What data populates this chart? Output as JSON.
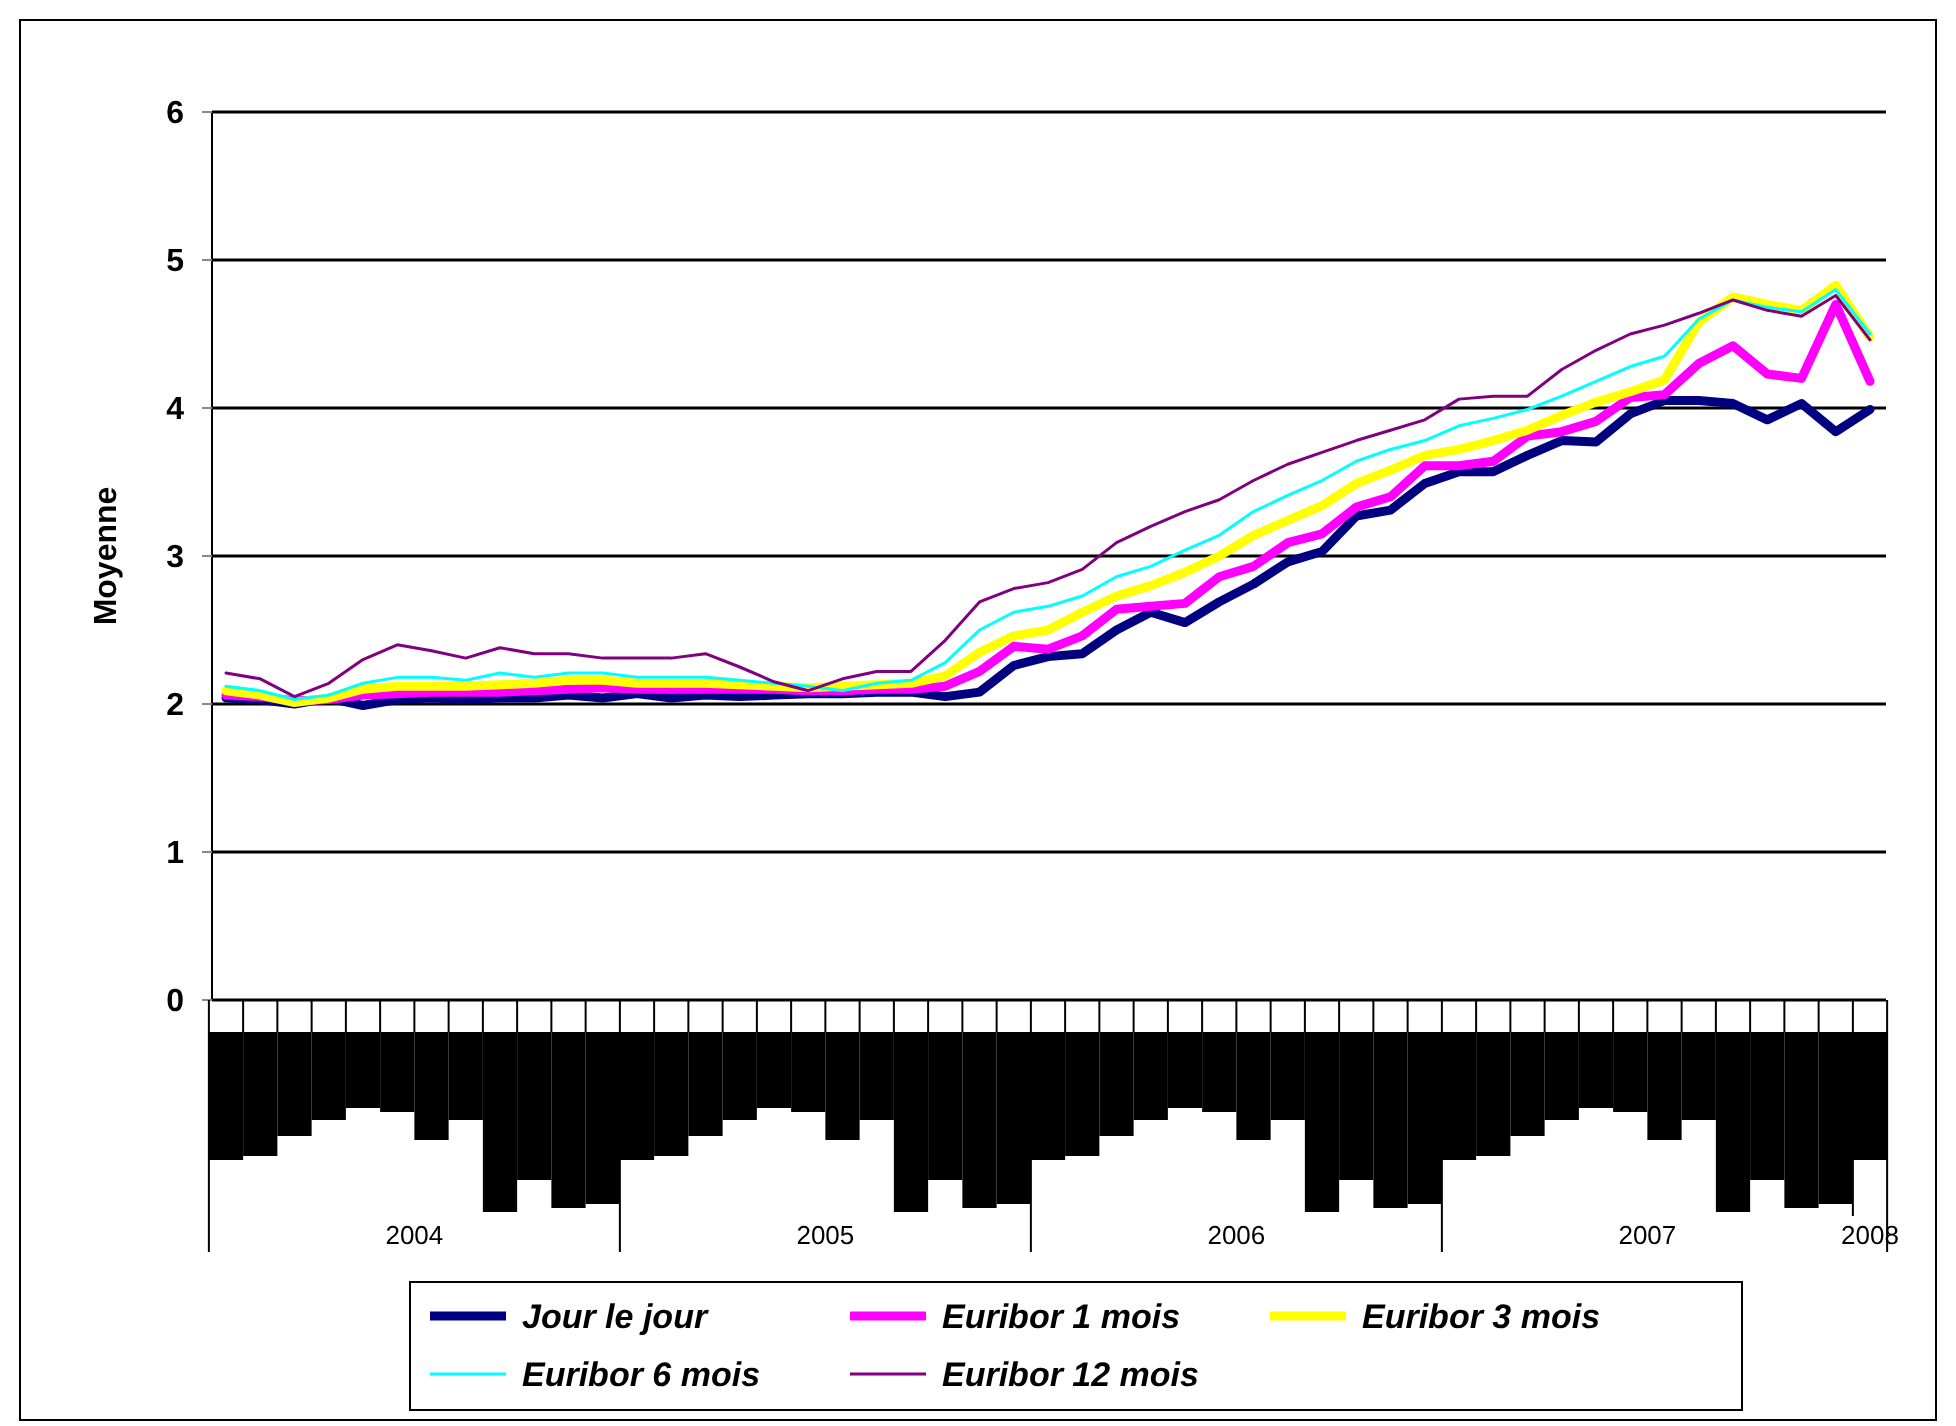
{
  "chart_data": {
    "type": "line",
    "ylabel": "Moyenne",
    "ylim": [
      0,
      6
    ],
    "yticks": [
      0,
      1,
      2,
      3,
      4,
      5,
      6
    ],
    "grid": "y",
    "legend": "bottom",
    "marker": "none",
    "categories": [
      null,
      null,
      null,
      null,
      null,
      null,
      null,
      null,
      null,
      null,
      null,
      null,
      null,
      null,
      null,
      null,
      null,
      null,
      null,
      null,
      null,
      null,
      null,
      null,
      null,
      null,
      null,
      null,
      null,
      null,
      null,
      null,
      null,
      null,
      null,
      null,
      null,
      null,
      null,
      null,
      null,
      null,
      null,
      null,
      null,
      null,
      null,
      null,
      null
    ],
    "annotations": [
      "2004",
      "2005",
      "2006",
      "2007",
      "2008"
    ],
    "series": [
      {
        "name": "Jour le jour",
        "color": "#000080",
        "values": [
          2.04,
          2.03,
          2.0,
          2.04,
          1.99,
          2.03,
          2.04,
          2.03,
          2.04,
          2.04,
          2.06,
          2.04,
          2.07,
          2.04,
          2.06,
          2.05,
          2.06,
          2.07,
          2.07,
          2.08,
          2.08,
          2.05,
          2.08,
          2.26,
          2.32,
          2.34,
          2.5,
          2.62,
          2.55,
          2.69,
          2.81,
          2.96,
          3.03,
          3.27,
          3.31,
          3.49,
          3.57,
          3.57,
          3.68,
          3.78,
          3.77,
          3.96,
          4.05,
          4.05,
          4.03,
          3.92,
          4.03,
          3.84,
          3.99
        ]
      },
      {
        "name": "Euribor 1 mois",
        "color": "#ff00ff",
        "values": [
          2.06,
          2.05,
          2.02,
          2.03,
          2.06,
          2.07,
          2.08,
          2.08,
          2.08,
          2.09,
          2.1,
          2.11,
          2.1,
          2.1,
          2.1,
          2.1,
          2.1,
          2.09,
          2.09,
          2.1,
          2.1,
          2.12,
          2.22,
          2.39,
          2.37,
          2.46,
          2.64,
          2.66,
          2.68,
          2.86,
          2.93,
          3.09,
          3.15,
          3.33,
          3.4,
          3.61,
          3.61,
          3.64,
          3.81,
          3.84,
          3.91,
          4.07,
          4.09,
          4.3,
          4.42,
          4.23,
          4.2,
          4.7,
          4.18
        ]
      },
      {
        "name": "Euribor 3 mois",
        "color": "#ffff00",
        "values": [
          2.09,
          2.06,
          2.01,
          2.04,
          2.1,
          2.12,
          2.12,
          2.12,
          2.13,
          2.14,
          2.16,
          2.16,
          2.14,
          2.14,
          2.14,
          2.13,
          2.12,
          2.11,
          2.12,
          2.13,
          2.14,
          2.19,
          2.35,
          2.46,
          2.5,
          2.62,
          2.73,
          2.8,
          2.89,
          3.0,
          3.14,
          3.24,
          3.34,
          3.49,
          3.58,
          3.68,
          3.72,
          3.78,
          3.85,
          3.95,
          4.04,
          4.11,
          4.19,
          4.58,
          4.75,
          4.7,
          4.66,
          4.83,
          4.48
        ]
      },
      {
        "name": "Euribor 6 mois",
        "color": "#00ffff",
        "values": [
          2.12,
          2.09,
          2.03,
          2.06,
          2.14,
          2.18,
          2.18,
          2.16,
          2.21,
          2.18,
          2.21,
          2.21,
          2.18,
          2.18,
          2.18,
          2.16,
          2.14,
          2.12,
          2.09,
          2.14,
          2.16,
          2.28,
          2.5,
          2.62,
          2.66,
          2.73,
          2.86,
          2.93,
          3.04,
          3.14,
          3.3,
          3.41,
          3.51,
          3.64,
          3.72,
          3.78,
          3.88,
          3.93,
          3.99,
          4.08,
          4.18,
          4.28,
          4.35,
          4.6,
          4.73,
          4.68,
          4.65,
          4.8,
          4.5
        ]
      },
      {
        "name": "Euribor 12 mois",
        "color": "#800080",
        "values": [
          2.21,
          2.17,
          2.05,
          2.14,
          2.3,
          2.4,
          2.36,
          2.31,
          2.38,
          2.34,
          2.34,
          2.31,
          2.31,
          2.31,
          2.34,
          2.25,
          2.15,
          2.09,
          2.17,
          2.22,
          2.22,
          2.43,
          2.69,
          2.78,
          2.82,
          2.91,
          3.09,
          3.2,
          3.3,
          3.38,
          3.51,
          3.62,
          3.7,
          3.78,
          3.85,
          3.92,
          4.06,
          4.08,
          4.08,
          4.26,
          4.39,
          4.5,
          4.56,
          4.64,
          4.73,
          4.66,
          4.62,
          4.76,
          4.46
        ]
      }
    ]
  }
}
